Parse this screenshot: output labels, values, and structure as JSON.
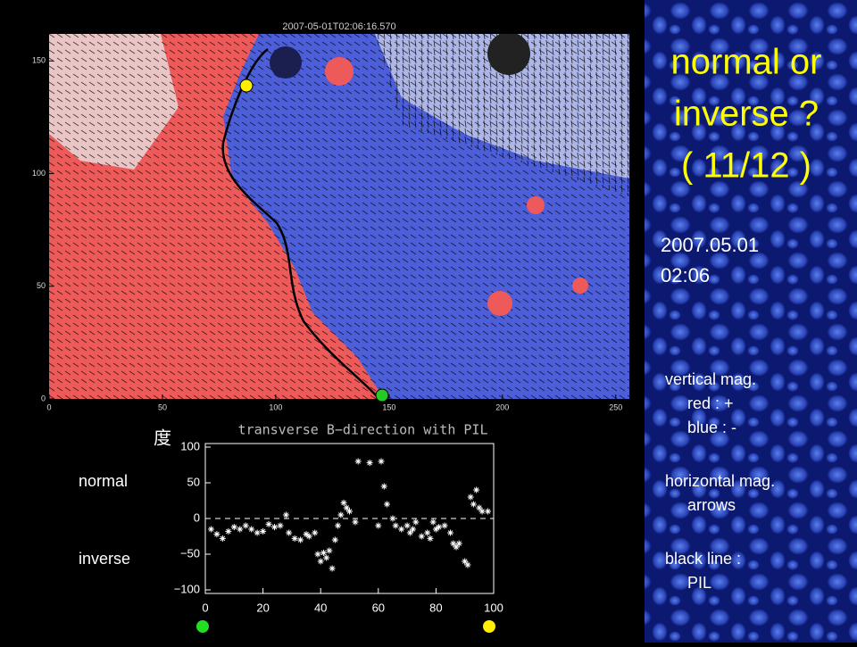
{
  "slide": {
    "title_lines": [
      "normal or",
      "inverse ?",
      "( 11/12 )"
    ],
    "date_lines": [
      "2007.05.01",
      "02:06"
    ],
    "notes": [
      "vertical mag.",
      "red  :  +",
      "blue :  -",
      "horizontal mag.",
      "arrows",
      "black line :",
      "PIL"
    ],
    "side_labels": [
      "normal",
      "inverse"
    ]
  },
  "chart_data": [
    {
      "type": "image",
      "title": "2007-05-01T02:06:16.570",
      "xlim": [
        0,
        256
      ],
      "xticks": [
        0,
        50,
        100,
        150,
        200,
        250
      ],
      "ylim": [
        0,
        162
      ],
      "yticks": [
        0,
        50,
        100,
        150
      ]
    },
    {
      "type": "scatter",
      "title": "transverse B−direction with PIL",
      "y_label": "度",
      "xlim": [
        0,
        100
      ],
      "xticks": [
        0,
        20,
        40,
        60,
        80,
        100
      ],
      "ylim": [
        -105,
        105
      ],
      "yticks": [
        {
          "value": -100,
          "label": "−100"
        },
        {
          "value": -50,
          "label": "−50"
        },
        0,
        50,
        100
      ],
      "reference_line": 0,
      "color": "#ffffff",
      "x": [
        2,
        4,
        6,
        8,
        10,
        12,
        14,
        16,
        18,
        20,
        22,
        24,
        26,
        28,
        29,
        31,
        33,
        35,
        36,
        38,
        39,
        40,
        41,
        42,
        43,
        44,
        45,
        46,
        47,
        48,
        49,
        50,
        52,
        53,
        57,
        60,
        61,
        62,
        63,
        65,
        66,
        68,
        70,
        71,
        72,
        73,
        75,
        77,
        78,
        79,
        80,
        81,
        83,
        85,
        86,
        87,
        88,
        90,
        91,
        92,
        93,
        94,
        95,
        96,
        98
      ],
      "values": [
        -15,
        -22,
        -28,
        -18,
        -12,
        -15,
        -10,
        -15,
        -20,
        -18,
        -8,
        -12,
        -10,
        5,
        -20,
        -28,
        -30,
        -22,
        -25,
        -20,
        -50,
        -60,
        -48,
        -55,
        -45,
        -70,
        -30,
        -10,
        5,
        22,
        15,
        10,
        -5,
        80,
        78,
        -10,
        80,
        45,
        20,
        0,
        -10,
        -15,
        -10,
        -20,
        -15,
        -5,
        -25,
        -20,
        -28,
        -5,
        -15,
        -12,
        -10,
        -20,
        -35,
        -40,
        -35,
        -60,
        -65,
        30,
        20,
        40,
        15,
        10,
        10
      ]
    }
  ]
}
